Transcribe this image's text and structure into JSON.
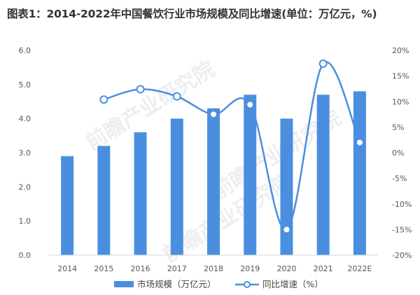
{
  "title": "图表1：2014-2022年中国餐饮行业市场规模及同比增速(单位：万亿元，%)",
  "watermark": "前瞻产业研究院",
  "colors": {
    "bar": "#4a8fdf",
    "line": "#4a8fdf"
  },
  "chart_data": {
    "type": "bar",
    "title": "图表1：2014-2022年中国餐饮行业市场规模及同比增速(单位：万亿元，%)",
    "categories": [
      "2014",
      "2015",
      "2016",
      "2017",
      "2018",
      "2019",
      "2020",
      "2021",
      "2022E"
    ],
    "series": [
      {
        "name": "市场规模（万亿元）",
        "type": "bar",
        "axis": "left",
        "values": [
          2.9,
          3.2,
          3.6,
          4.0,
          4.3,
          4.7,
          4.0,
          4.7,
          4.8
        ]
      },
      {
        "name": "同比增速（%）",
        "type": "line",
        "smooth": true,
        "axis": "right",
        "values": [
          null,
          10.4,
          12.4,
          11.0,
          7.5,
          9.4,
          -15.0,
          17.4,
          2.0
        ]
      }
    ],
    "left_axis": {
      "min": 0,
      "max": 6,
      "ticks": [
        "0.0",
        "1.0",
        "2.0",
        "3.0",
        "4.0",
        "5.0",
        "6.0"
      ]
    },
    "right_axis": {
      "min": -20,
      "max": 20,
      "ticks": [
        "-20%",
        "-15%",
        "-10%",
        "-5%",
        "0%",
        "5%",
        "10%",
        "15%",
        "20%"
      ]
    },
    "grid": false,
    "legend": {
      "position": "bottom",
      "items": [
        "市场规模（万亿元）",
        "同比增速（%）"
      ]
    }
  }
}
